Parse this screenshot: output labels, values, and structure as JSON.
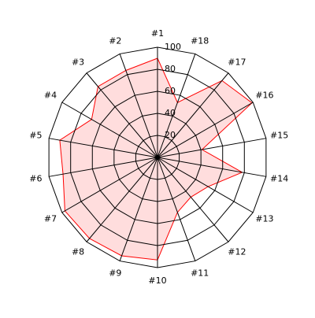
{
  "chart_data": {
    "type": "radar",
    "categories": [
      "#1",
      "#2",
      "#3",
      "#4",
      "#5",
      "#6",
      "#7",
      "#8",
      "#9",
      "#10",
      "#11",
      "#12",
      "#13",
      "#14",
      "#15",
      "#16",
      "#17",
      "#18"
    ],
    "values": [
      90,
      84,
      84,
      69,
      90,
      87,
      97,
      96,
      95,
      93,
      53,
      47,
      53,
      78,
      41,
      99,
      91,
      53
    ],
    "color": "#ff0000",
    "fill": "#ffdddd",
    "rlim": [
      0,
      100
    ],
    "rticks": [
      20,
      40,
      60,
      80,
      100
    ],
    "grid": true,
    "direction": "counterclockwise"
  }
}
